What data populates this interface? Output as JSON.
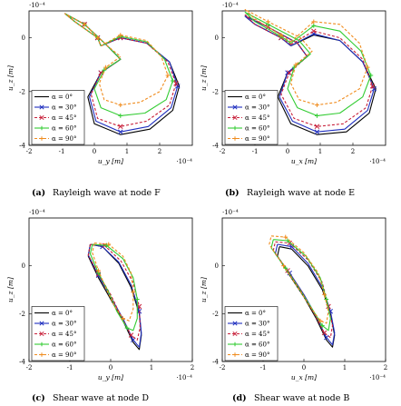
{
  "figure": {
    "panels": [
      {
        "id": "a",
        "caption_letter": "(a)",
        "caption_text": "Rayleigh wave at node F",
        "xlabel": "u_y [m]",
        "ylabel": "u_z [m]",
        "x_exponent": "·10⁻⁴",
        "y_exponent": "·10⁻⁴"
      },
      {
        "id": "b",
        "caption_letter": "(b)",
        "caption_text": "Rayleigh wave at node E",
        "xlabel": "u_x [m]",
        "ylabel": "u_z [m]",
        "x_exponent": "·10⁻⁴",
        "y_exponent": "·10⁻⁴"
      },
      {
        "id": "c",
        "caption_letter": "(c)",
        "caption_text": "Shear wave at node D",
        "xlabel": "u_y [m]",
        "ylabel": "u_z [m]",
        "x_exponent": "·10⁻⁴",
        "y_exponent": "·10⁻⁴"
      },
      {
        "id": "d",
        "caption_letter": "(d)",
        "caption_text": "Shear wave at node B",
        "xlabel": "u_x [m]",
        "ylabel": "u_z [m]",
        "x_exponent": "·10⁻⁴",
        "y_exponent": "·10⁻⁴"
      }
    ]
  },
  "chart_data": [
    {
      "type": "line",
      "panel": "a",
      "title": "Rayleigh wave at node F",
      "xlabel": "u_y [m]",
      "ylabel": "u_z [m]",
      "axis_multiplier": "10^-4",
      "xlim": [
        -2,
        3
      ],
      "ylim": [
        -4,
        1
      ],
      "xticks": [
        -2,
        -1,
        0,
        1,
        2
      ],
      "yticks": [
        -4,
        -2,
        0
      ],
      "legend_position": "bottom-left",
      "series": [
        {
          "name": "α = 0°",
          "color": "#000000",
          "marker": "none",
          "dash": "solid",
          "x": [
            0.2,
            0.8,
            1.6,
            2.3,
            2.6,
            2.4,
            1.7,
            0.8,
            0.0,
            -0.2,
            0.2,
            0.8,
            0.4,
            -0.3,
            -0.9,
            -0.6,
            0.1,
            0.2
          ],
          "y": [
            -0.3,
            0.0,
            -0.2,
            -0.9,
            -1.8,
            -2.7,
            -3.4,
            -3.6,
            -3.2,
            -2.2,
            -1.3,
            -0.8,
            -0.3,
            0.5,
            0.9,
            0.6,
            0.0,
            -0.3
          ]
        },
        {
          "name": "α = 30°",
          "color": "#1f2fbf",
          "marker": "x",
          "dash": "solid",
          "x": [
            0.2,
            0.8,
            1.6,
            2.3,
            2.55,
            2.35,
            1.65,
            0.8,
            0.05,
            -0.15,
            0.2,
            0.8,
            0.4,
            -0.3,
            -0.9,
            -0.6,
            0.1,
            0.2
          ],
          "y": [
            -0.3,
            0.0,
            -0.2,
            -0.9,
            -1.8,
            -2.6,
            -3.3,
            -3.5,
            -3.1,
            -2.2,
            -1.3,
            -0.8,
            -0.3,
            0.5,
            0.9,
            0.6,
            0.0,
            -0.3
          ]
        },
        {
          "name": "α = 45°",
          "color": "#c8203a",
          "marker": "x",
          "dash": "dashed",
          "x": [
            0.2,
            0.8,
            1.6,
            2.25,
            2.5,
            2.3,
            1.6,
            0.8,
            0.1,
            -0.1,
            0.2,
            0.8,
            0.4,
            -0.3,
            -0.9,
            -0.6,
            0.1,
            0.2
          ],
          "y": [
            -0.3,
            0.0,
            -0.2,
            -0.9,
            -1.7,
            -2.5,
            -3.1,
            -3.3,
            -3.0,
            -2.1,
            -1.3,
            -0.8,
            -0.3,
            0.5,
            0.9,
            0.6,
            0.0,
            -0.3
          ]
        },
        {
          "name": "α = 60°",
          "color": "#33cc33",
          "marker": "plus",
          "dash": "solid",
          "x": [
            0.2,
            0.8,
            1.6,
            2.15,
            2.4,
            2.2,
            1.55,
            0.8,
            0.2,
            0.0,
            0.3,
            0.8,
            0.4,
            -0.3,
            -0.9,
            -0.6,
            0.1,
            0.2
          ],
          "y": [
            -0.3,
            0.05,
            -0.15,
            -0.8,
            -1.6,
            -2.3,
            -2.8,
            -2.9,
            -2.6,
            -1.9,
            -1.2,
            -0.8,
            -0.3,
            0.5,
            0.9,
            0.6,
            0.0,
            -0.3
          ]
        },
        {
          "name": "α = 90°",
          "color": "#f08c1e",
          "marker": "plus",
          "dash": "dashed",
          "x": [
            0.2,
            0.8,
            1.6,
            2.05,
            2.25,
            2.0,
            1.4,
            0.8,
            0.3,
            0.15,
            0.35,
            0.8,
            0.4,
            -0.3,
            -0.9,
            -0.6,
            0.1,
            0.2
          ],
          "y": [
            -0.3,
            0.1,
            -0.1,
            -0.7,
            -1.4,
            -2.0,
            -2.4,
            -2.5,
            -2.3,
            -1.7,
            -1.1,
            -0.7,
            -0.3,
            0.5,
            0.9,
            0.6,
            0.0,
            -0.3
          ]
        }
      ]
    },
    {
      "type": "line",
      "panel": "b",
      "title": "Rayleigh wave at node E",
      "xlabel": "u_x [m]",
      "ylabel": "u_z [m]",
      "axis_multiplier": "10^-4",
      "xlim": [
        -2,
        3
      ],
      "ylim": [
        -4,
        1
      ],
      "xticks": [
        -2,
        -1,
        0,
        1,
        2
      ],
      "yticks": [
        -4,
        -2,
        0
      ],
      "legend_position": "bottom-left",
      "series": [
        {
          "name": "α = 0°",
          "color": "#000000",
          "marker": "none",
          "dash": "solid",
          "x": [
            0.1,
            0.8,
            1.6,
            2.3,
            2.7,
            2.5,
            1.8,
            0.9,
            0.1,
            -0.3,
            0.0,
            0.6,
            0.3,
            -0.6,
            -1.3,
            -1.0,
            -0.2,
            0.1
          ],
          "y": [
            -0.3,
            0.1,
            -0.1,
            -0.9,
            -1.9,
            -2.8,
            -3.5,
            -3.6,
            -3.2,
            -2.2,
            -1.3,
            -0.7,
            -0.2,
            0.4,
            0.8,
            0.5,
            0.0,
            -0.3
          ]
        },
        {
          "name": "α = 30°",
          "color": "#1f2fbf",
          "marker": "x",
          "dash": "solid",
          "x": [
            0.1,
            0.8,
            1.6,
            2.3,
            2.65,
            2.45,
            1.75,
            0.9,
            0.15,
            -0.25,
            0.0,
            0.6,
            0.3,
            -0.6,
            -1.3,
            -1.0,
            -0.2,
            0.1
          ],
          "y": [
            -0.3,
            0.15,
            -0.1,
            -0.9,
            -1.9,
            -2.7,
            -3.4,
            -3.5,
            -3.1,
            -2.2,
            -1.3,
            -0.7,
            -0.2,
            0.4,
            0.8,
            0.5,
            0.0,
            -0.3
          ]
        },
        {
          "name": "α = 45°",
          "color": "#c8203a",
          "marker": "x",
          "dash": "dashed",
          "x": [
            0.1,
            0.8,
            1.6,
            2.3,
            2.6,
            2.4,
            1.7,
            0.9,
            0.2,
            -0.2,
            0.05,
            0.6,
            0.3,
            -0.6,
            -1.3,
            -1.0,
            -0.2,
            0.1
          ],
          "y": [
            -0.25,
            0.25,
            0.0,
            -0.8,
            -1.8,
            -2.6,
            -3.2,
            -3.3,
            -3.0,
            -2.1,
            -1.3,
            -0.7,
            -0.2,
            0.4,
            0.85,
            0.5,
            0.0,
            -0.25
          ]
        },
        {
          "name": "α = 60°",
          "color": "#33cc33",
          "marker": "plus",
          "dash": "solid",
          "x": [
            0.1,
            0.8,
            1.6,
            2.25,
            2.55,
            2.3,
            1.6,
            0.9,
            0.3,
            0.0,
            0.2,
            0.7,
            0.35,
            -0.6,
            -1.3,
            -1.0,
            -0.2,
            0.1
          ],
          "y": [
            -0.2,
            0.45,
            0.25,
            -0.5,
            -1.4,
            -2.2,
            -2.8,
            -2.9,
            -2.6,
            -1.9,
            -1.1,
            -0.6,
            -0.1,
            0.5,
            0.95,
            0.6,
            0.05,
            -0.2
          ]
        },
        {
          "name": "α = 90°",
          "color": "#f08c1e",
          "marker": "plus",
          "dash": "dashed",
          "x": [
            0.1,
            0.8,
            1.6,
            2.2,
            2.45,
            2.2,
            1.5,
            0.9,
            0.35,
            0.1,
            0.25,
            0.75,
            0.4,
            -0.6,
            -1.3,
            -1.0,
            -0.2,
            0.1
          ],
          "y": [
            -0.15,
            0.6,
            0.5,
            -0.2,
            -1.1,
            -1.9,
            -2.4,
            -2.5,
            -2.3,
            -1.7,
            -1.0,
            -0.5,
            0.0,
            0.6,
            1.05,
            0.7,
            0.1,
            -0.15
          ]
        }
      ]
    },
    {
      "type": "line",
      "panel": "c",
      "title": "Shear wave at node D",
      "xlabel": "u_y [m]",
      "ylabel": "u_z [m]",
      "axis_multiplier": "10^-4",
      "xlim": [
        -2,
        2
      ],
      "ylim": [
        -4,
        2
      ],
      "xticks": [
        -2,
        -1,
        0,
        1,
        2
      ],
      "yticks": [
        -4,
        -2,
        0
      ],
      "legend_position": "bottom-left",
      "series": [
        {
          "name": "α = 0°",
          "color": "#000000",
          "marker": "none",
          "dash": "solid",
          "x": [
            -0.5,
            -0.2,
            0.2,
            0.5,
            0.7,
            0.75,
            0.7,
            0.55,
            0.3,
            0.0,
            -0.3,
            -0.55,
            -0.5
          ],
          "y": [
            0.9,
            0.8,
            0.1,
            -0.9,
            -2.0,
            -2.9,
            -3.5,
            -3.2,
            -2.3,
            -1.4,
            -0.5,
            0.4,
            0.9
          ]
        },
        {
          "name": "α = 30°",
          "color": "#1f2fbf",
          "marker": "x",
          "dash": "solid",
          "x": [
            -0.5,
            -0.2,
            0.2,
            0.5,
            0.7,
            0.75,
            0.7,
            0.55,
            0.3,
            0.0,
            -0.3,
            -0.55,
            -0.5
          ],
          "y": [
            0.9,
            0.8,
            0.15,
            -0.8,
            -1.9,
            -2.8,
            -3.4,
            -3.1,
            -2.2,
            -1.3,
            -0.4,
            0.45,
            0.9
          ]
        },
        {
          "name": "α = 45°",
          "color": "#c8203a",
          "marker": "x",
          "dash": "dashed",
          "x": [
            -0.5,
            -0.15,
            0.25,
            0.55,
            0.7,
            0.72,
            0.65,
            0.5,
            0.25,
            0.0,
            -0.3,
            -0.55,
            -0.5
          ],
          "y": [
            0.9,
            0.85,
            0.2,
            -0.7,
            -1.7,
            -2.6,
            -3.1,
            -2.9,
            -2.1,
            -1.2,
            -0.35,
            0.45,
            0.9
          ]
        },
        {
          "name": "α = 60°",
          "color": "#33cc33",
          "marker": "plus",
          "dash": "solid",
          "x": [
            -0.45,
            -0.1,
            0.3,
            0.55,
            0.65,
            0.65,
            0.55,
            0.4,
            0.15,
            -0.05,
            -0.3,
            -0.5,
            -0.45
          ],
          "y": [
            0.9,
            0.85,
            0.3,
            -0.5,
            -1.4,
            -2.2,
            -2.7,
            -2.6,
            -1.9,
            -1.1,
            -0.3,
            0.5,
            0.9
          ]
        },
        {
          "name": "α = 90°",
          "color": "#f08c1e",
          "marker": "plus",
          "dash": "dashed",
          "x": [
            -0.4,
            -0.05,
            0.3,
            0.5,
            0.55,
            0.55,
            0.45,
            0.3,
            0.1,
            -0.1,
            -0.3,
            -0.45,
            -0.4
          ],
          "y": [
            0.95,
            0.9,
            0.4,
            -0.3,
            -1.1,
            -1.8,
            -2.3,
            -2.2,
            -1.7,
            -1.0,
            -0.2,
            0.55,
            0.95
          ]
        }
      ]
    },
    {
      "type": "line",
      "panel": "d",
      "title": "Shear wave at node B",
      "xlabel": "u_x [m]",
      "ylabel": "u_z [m]",
      "axis_multiplier": "10^-4",
      "xlim": [
        -2,
        2
      ],
      "ylim": [
        -4,
        2
      ],
      "xticks": [
        -2,
        -1,
        0,
        1,
        2
      ],
      "yticks": [
        -4,
        -2,
        0
      ],
      "legend_position": "bottom-left",
      "series": [
        {
          "name": "α = 0°",
          "color": "#000000",
          "marker": "none",
          "dash": "solid",
          "x": [
            -0.6,
            -0.3,
            0.1,
            0.45,
            0.65,
            0.75,
            0.7,
            0.55,
            0.3,
            0.0,
            -0.35,
            -0.65,
            -0.6
          ],
          "y": [
            0.8,
            0.7,
            0.0,
            -1.0,
            -2.0,
            -2.9,
            -3.4,
            -3.1,
            -2.2,
            -1.3,
            -0.4,
            0.4,
            0.8
          ]
        },
        {
          "name": "α = 30°",
          "color": "#1f2fbf",
          "marker": "x",
          "dash": "solid",
          "x": [
            -0.65,
            -0.3,
            0.1,
            0.45,
            0.65,
            0.75,
            0.7,
            0.55,
            0.3,
            0.0,
            -0.35,
            -0.7,
            -0.65
          ],
          "y": [
            0.9,
            0.8,
            0.1,
            -0.9,
            -1.9,
            -2.8,
            -3.3,
            -3.0,
            -2.1,
            -1.2,
            -0.3,
            0.5,
            0.9
          ]
        },
        {
          "name": "α = 45°",
          "color": "#c8203a",
          "marker": "x",
          "dash": "dashed",
          "x": [
            -0.7,
            -0.35,
            0.1,
            0.45,
            0.6,
            0.7,
            0.65,
            0.5,
            0.25,
            -0.05,
            -0.4,
            -0.75,
            -0.7
          ],
          "y": [
            1.0,
            0.95,
            0.25,
            -0.7,
            -1.7,
            -2.5,
            -3.0,
            -2.8,
            -2.0,
            -1.1,
            -0.2,
            0.65,
            1.0
          ]
        },
        {
          "name": "α = 60°",
          "color": "#33cc33",
          "marker": "plus",
          "dash": "solid",
          "x": [
            -0.75,
            -0.4,
            0.05,
            0.4,
            0.55,
            0.65,
            0.6,
            0.45,
            0.2,
            -0.1,
            -0.45,
            -0.8,
            -0.75
          ],
          "y": [
            1.1,
            1.05,
            0.4,
            -0.5,
            -1.4,
            -2.2,
            -2.7,
            -2.5,
            -1.8,
            -1.0,
            -0.1,
            0.75,
            1.1
          ]
        },
        {
          "name": "α = 90°",
          "color": "#f08c1e",
          "marker": "plus",
          "dash": "dashed",
          "x": [
            -0.8,
            -0.45,
            0.0,
            0.35,
            0.5,
            0.6,
            0.55,
            0.4,
            0.15,
            -0.15,
            -0.5,
            -0.85,
            -0.8
          ],
          "y": [
            1.25,
            1.2,
            0.55,
            -0.3,
            -1.2,
            -1.9,
            -2.4,
            -2.3,
            -1.7,
            -0.9,
            0.0,
            0.9,
            1.25
          ]
        }
      ]
    }
  ]
}
